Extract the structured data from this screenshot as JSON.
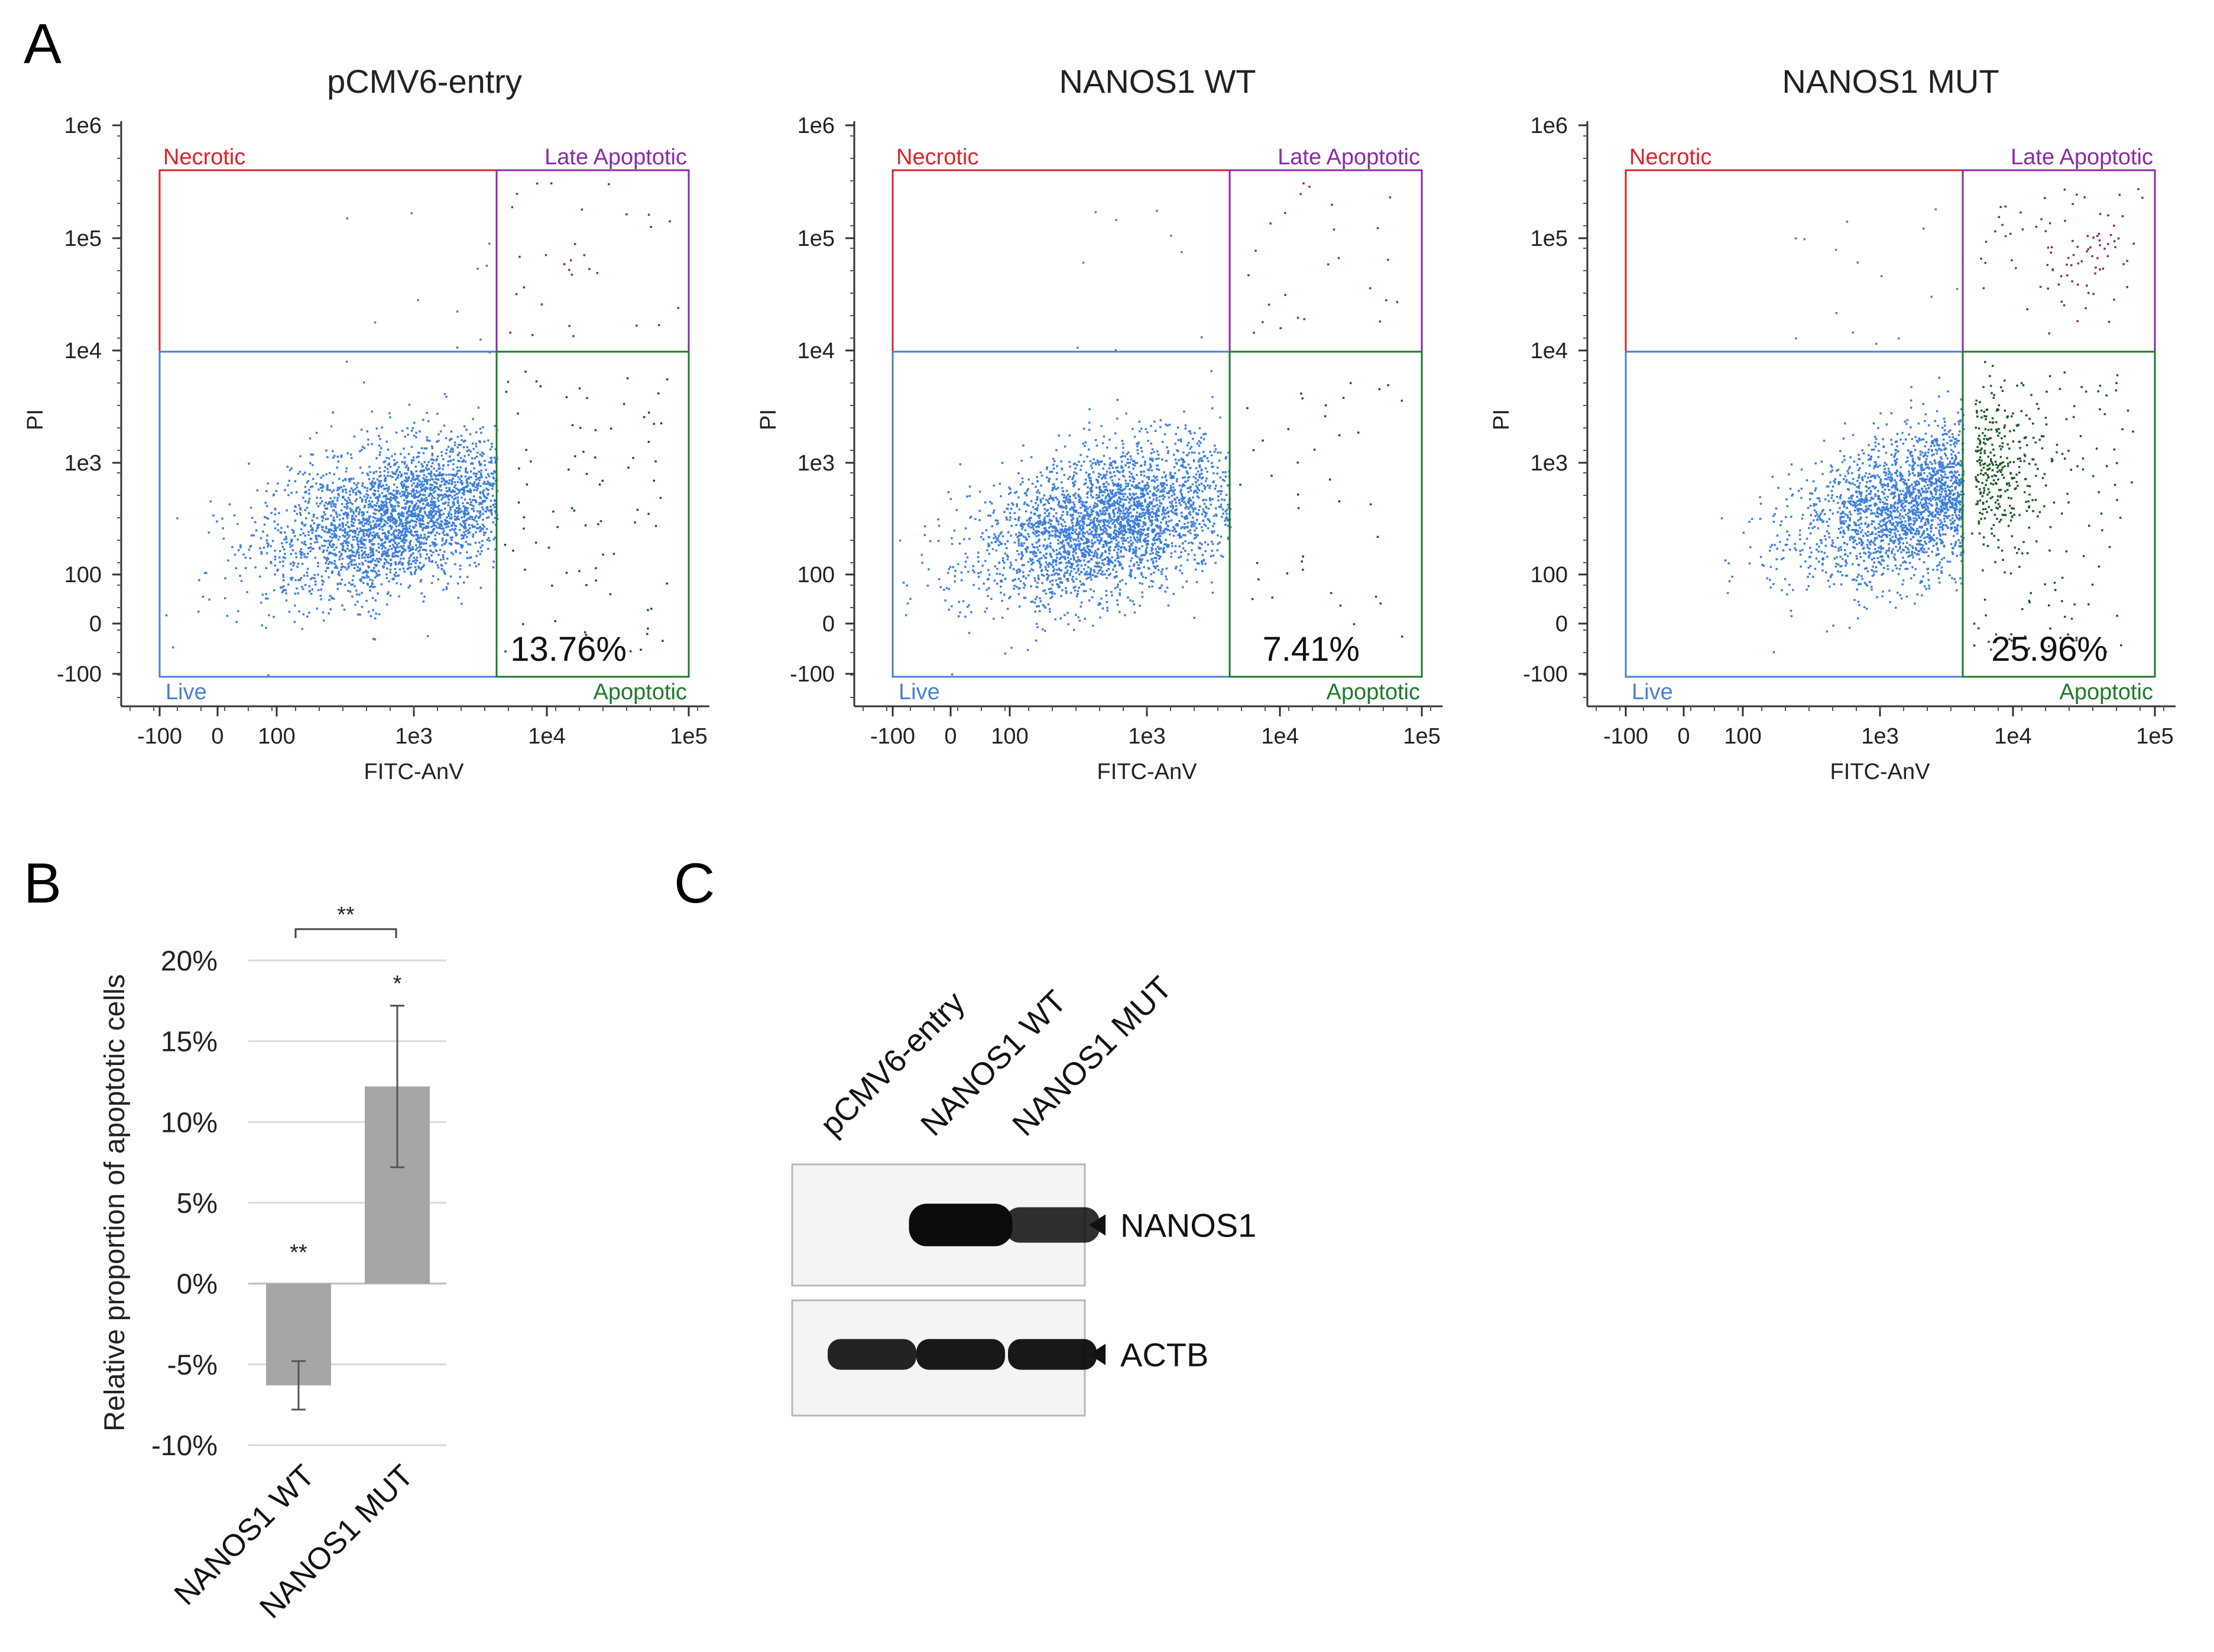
{
  "panels": {
    "a": "A",
    "b": "B",
    "c": "C"
  },
  "flow_plots": [
    {
      "title": "pCMV6-entry",
      "x_axis_label": "FITC-AnV",
      "y_axis_label": "PI",
      "x_ticks": [
        "-100",
        "0",
        "100",
        "1e3",
        "1e4",
        "1e5"
      ],
      "y_ticks": [
        "1e6",
        "1e5",
        "1e4",
        "1e3",
        "100",
        "0",
        "-100"
      ],
      "quadrants": {
        "necrotic": "Necrotic",
        "late": "Late Apoptotic",
        "live": "Live",
        "apoptotic": "Apoptotic"
      },
      "apoptotic_percent": "13.76%",
      "density": {
        "late": 30,
        "apoptotic": 80,
        "live": 3000,
        "necrotic": 12
      }
    },
    {
      "title": "NANOS1 WT",
      "x_axis_label": "FITC-AnV",
      "y_axis_label": "PI",
      "x_ticks": [
        "-100",
        "0",
        "100",
        "1e3",
        "1e4",
        "1e5"
      ],
      "y_ticks": [
        "1e6",
        "1e5",
        "1e4",
        "1e3",
        "100",
        "0",
        "-100"
      ],
      "quadrants": {
        "necrotic": "Necrotic",
        "late": "Late Apoptotic",
        "live": "Live",
        "apoptotic": "Apoptotic"
      },
      "apoptotic_percent": "7.41%",
      "density": {
        "late": 25,
        "apoptotic": 40,
        "live": 3000,
        "necrotic": 10
      }
    },
    {
      "title": "NANOS1 MUT",
      "x_axis_label": "FITC-AnV",
      "y_axis_label": "PI",
      "x_ticks": [
        "-100",
        "0",
        "100",
        "1e3",
        "1e4",
        "1e5"
      ],
      "y_ticks": [
        "1e6",
        "1e5",
        "1e4",
        "1e3",
        "100",
        "0",
        "-100"
      ],
      "quadrants": {
        "necrotic": "Necrotic",
        "late": "Late Apoptotic",
        "live": "Live",
        "apoptotic": "Apoptotic"
      },
      "apoptotic_percent": "25.96%",
      "density": {
        "late": 90,
        "apoptotic": 420,
        "live": 3000,
        "necrotic": 15
      }
    }
  ],
  "quadrant_colors": {
    "necrotic": "#e0202a",
    "late": "#8a2aa8",
    "live": "#4a7fd0",
    "apoptotic": "#1e7a2a",
    "dots_live": "#3d7fdc",
    "dots_apoptotic": "#1a5a22",
    "dots_late": "#8a2a6a"
  },
  "chart_data": {
    "type": "bar",
    "ylabel": "Relative proportion of apoptotic cells",
    "categories": [
      "NANOS1 WT",
      "NANOS1 MUT"
    ],
    "values": [
      -6.3,
      12.2
    ],
    "errors": [
      1.5,
      5.0
    ],
    "ylim": [
      -10,
      20
    ],
    "yticks": [
      "20%",
      "15%",
      "10%",
      "5%",
      "0%",
      "-5%",
      "-10%"
    ],
    "significance": {
      "wt": "**",
      "mut": "*",
      "bracket": "**"
    },
    "bar_color": "#a6a6a6"
  },
  "blot": {
    "lanes": [
      "pCMV6-entry",
      "NANOS1 WT",
      "NANOS1 MUT"
    ],
    "bands": [
      {
        "label": "NANOS1",
        "intensity": [
          0,
          1,
          0.85
        ]
      },
      {
        "label": "ACTB",
        "intensity": [
          0.9,
          0.95,
          0.95
        ]
      }
    ]
  }
}
